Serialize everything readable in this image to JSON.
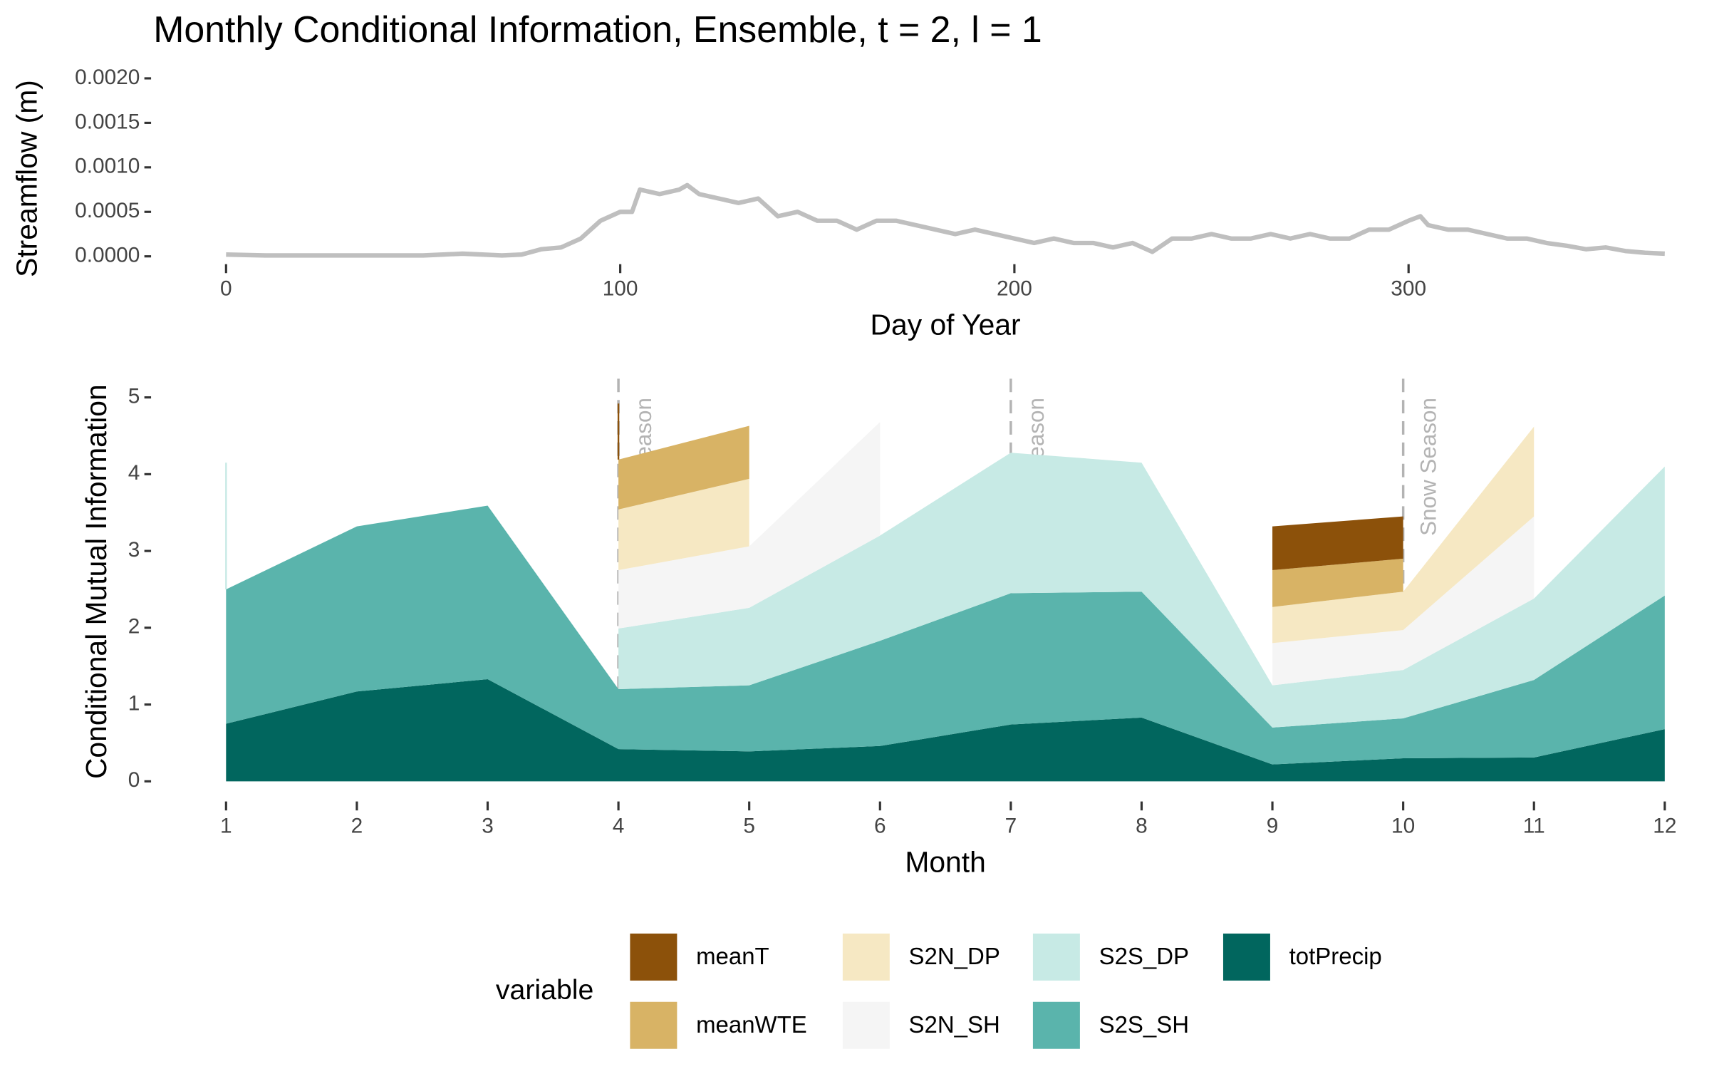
{
  "chart_data": [
    {
      "type": "line",
      "title": "Monthly Conditional Information, Ensemble, t = 2, l = 1",
      "x_label": "Day of Year",
      "y_label": "Streamflow (m)",
      "color": "#bfbfbf",
      "x": [
        0,
        10,
        20,
        30,
        40,
        50,
        55,
        60,
        65,
        70,
        75,
        80,
        85,
        90,
        95,
        100,
        103,
        105,
        110,
        115,
        117,
        120,
        125,
        130,
        135,
        140,
        145,
        150,
        155,
        160,
        165,
        170,
        175,
        180,
        185,
        190,
        195,
        200,
        205,
        210,
        215,
        220,
        225,
        230,
        235,
        240,
        245,
        250,
        255,
        260,
        265,
        270,
        275,
        280,
        285,
        290,
        295,
        300,
        303,
        305,
        310,
        315,
        320,
        325,
        330,
        335,
        340,
        345,
        350,
        355,
        360,
        365
      ],
      "values": [
        2e-05,
        1e-05,
        1e-05,
        1e-05,
        1e-05,
        1e-05,
        2e-05,
        3e-05,
        2e-05,
        1e-05,
        2e-05,
        8e-05,
        0.0001,
        0.0002,
        0.0004,
        0.0005,
        0.0005,
        0.00075,
        0.0007,
        0.00075,
        0.0008,
        0.0007,
        0.00065,
        0.0006,
        0.00065,
        0.00045,
        0.0005,
        0.0004,
        0.0004,
        0.0003,
        0.0004,
        0.0004,
        0.00035,
        0.0003,
        0.00025,
        0.0003,
        0.00025,
        0.0002,
        0.00015,
        0.0002,
        0.00015,
        0.00015,
        0.0001,
        0.00015,
        5e-05,
        0.0002,
        0.0002,
        0.00025,
        0.0002,
        0.0002,
        0.00025,
        0.0002,
        0.00025,
        0.0002,
        0.0002,
        0.0003,
        0.0003,
        0.0004,
        0.00045,
        0.00035,
        0.0003,
        0.0003,
        0.00025,
        0.0002,
        0.0002,
        0.00015,
        0.00012,
        8e-05,
        0.0001,
        6e-05,
        4e-05,
        3e-05
      ],
      "xlim": [
        0,
        365
      ],
      "xticks": [
        0,
        100,
        200,
        300
      ],
      "ylim": [
        0,
        0.002
      ],
      "yticks": [
        {
          "value": 0,
          "label": "0.0000"
        },
        0.0005,
        {
          "value": 0.001,
          "label": "0.0010"
        },
        0.0015,
        {
          "value": 0.002,
          "label": "0.0020"
        }
      ]
    },
    {
      "type": "area",
      "stacked": true,
      "x_label": "Month",
      "y_label": "Conditional Mutual Information",
      "x": [
        1,
        2,
        3,
        4,
        5,
        6,
        7,
        8,
        9,
        10,
        11,
        12
      ],
      "series": [
        {
          "name": "meanT",
          "color": "#8c510a",
          "values": [
            null,
            null,
            null,
            0.73,
            null,
            null,
            null,
            null,
            0.57,
            0.55,
            null,
            null
          ]
        },
        {
          "name": "meanWTE",
          "color": "#d8b365",
          "values": [
            null,
            null,
            null,
            0.65,
            0.69,
            null,
            null,
            null,
            0.48,
            0.43,
            null,
            null
          ]
        },
        {
          "name": "S2N_DP",
          "color": "#f6e8c3",
          "values": [
            null,
            null,
            null,
            0.79,
            0.88,
            null,
            null,
            null,
            0.47,
            0.5,
            1.17,
            null
          ]
        },
        {
          "name": "S2N_SH",
          "color": "#f5f5f5",
          "values": [
            null,
            null,
            null,
            0.76,
            0.8,
            1.48,
            null,
            null,
            0.55,
            0.52,
            1.07,
            null
          ]
        },
        {
          "name": "S2S_DP",
          "color": "#c7eae5",
          "values": [
            1.65,
            null,
            null,
            0.79,
            1.01,
            1.37,
            1.83,
            1.68,
            0.55,
            0.63,
            1.06,
            1.68
          ]
        },
        {
          "name": "S2S_SH",
          "color": "#5ab4ac",
          "values": [
            1.75,
            2.15,
            2.26,
            0.78,
            0.86,
            1.37,
            1.71,
            1.64,
            0.48,
            0.52,
            1.01,
            1.74
          ]
        },
        {
          "name": "totPrecip",
          "color": "#01665e",
          "values": [
            0.75,
            1.17,
            1.33,
            0.42,
            0.39,
            0.46,
            0.74,
            0.83,
            0.22,
            0.3,
            0.31,
            0.68
          ]
        }
      ],
      "xlim": [
        1,
        12
      ],
      "xticks": [
        1,
        2,
        3,
        4,
        5,
        6,
        7,
        8,
        9,
        10,
        11,
        12
      ],
      "ylim": [
        0,
        5.2
      ],
      "yticks": [
        0,
        1,
        2,
        3,
        4,
        5
      ],
      "annotations": [
        {
          "x": 4,
          "label": "Snow Season"
        },
        {
          "x": 7,
          "label": "Snow Season"
        },
        {
          "x": 10,
          "label": "Snow Season"
        }
      ],
      "legend_title": "variable",
      "legend": "bottom"
    }
  ]
}
